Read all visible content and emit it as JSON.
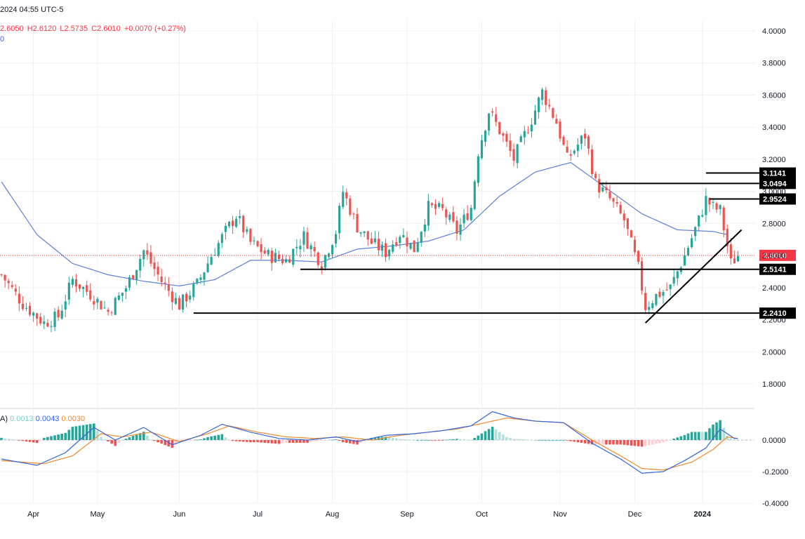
{
  "header": {
    "datetime": "2024 04:55 UTC-5",
    "ohlc": {
      "o": "2.6050",
      "h": "H2.6120",
      "l": "L2.5735",
      "c": "C2.6010",
      "chg": "+0.0070 (+0.27%)"
    },
    "ma_value": "0",
    "macd_prefix": "A)",
    "macd_hist": "0.0013",
    "macd_line": "0.0043",
    "macd_signal": "0.0030"
  },
  "colors": {
    "up": "#26a69a",
    "down": "#ef5350",
    "ma": "#5b7fde",
    "macd": "#3366dd",
    "signal": "#f0892e",
    "hist_up_strong": "#26a69a",
    "hist_up_weak": "#b2dfdb",
    "hist_dn_strong": "#ef5350",
    "hist_dn_weak": "#ffcdd2",
    "grid": "#eef0f3",
    "last_price": "#f23645"
  },
  "chart_data": [
    {
      "type": "candlestick",
      "y_axis_ticks": [
        "4.0000",
        "3.8000",
        "3.6000",
        "3.4000",
        "3.2000",
        "3.0000",
        "2.8000",
        "2.6000",
        "2.4000",
        "2.2000",
        "2.0000",
        "1.8000"
      ],
      "ylim": [
        1.7,
        4.05
      ],
      "x_labels": [
        "Apr",
        "May",
        "Jun",
        "Jul",
        "Aug",
        "Sep",
        "Oct",
        "Nov",
        "Dec",
        "2024"
      ],
      "last_price": "2.6010",
      "horizontal_levels": [
        {
          "label": "3.1141",
          "value": 3.1141,
          "from": 198
        },
        {
          "label": "3.0494",
          "value": 3.0494,
          "from": 168
        },
        {
          "label": "2.9524",
          "value": 2.9524,
          "from": 199
        },
        {
          "label": "2.5141",
          "value": 2.5141,
          "from": 84
        },
        {
          "label": "2.2410",
          "value": 2.241,
          "from": 54
        }
      ],
      "trendline": {
        "from": [
          181,
          2.18
        ],
        "to": [
          208,
          2.76
        ]
      },
      "ma_anchors": [
        [
          0,
          3.06
        ],
        [
          10,
          2.73
        ],
        [
          20,
          2.55
        ],
        [
          30,
          2.48
        ],
        [
          40,
          2.44
        ],
        [
          50,
          2.41
        ],
        [
          60,
          2.45
        ],
        [
          70,
          2.57
        ],
        [
          80,
          2.57
        ],
        [
          90,
          2.56
        ],
        [
          100,
          2.64
        ],
        [
          110,
          2.66
        ],
        [
          120,
          2.69
        ],
        [
          130,
          2.76
        ],
        [
          140,
          2.97
        ],
        [
          150,
          3.12
        ],
        [
          160,
          3.18
        ],
        [
          170,
          3.02
        ],
        [
          180,
          2.86
        ],
        [
          190,
          2.76
        ],
        [
          200,
          2.75
        ],
        [
          204,
          2.73
        ]
      ],
      "close_anchors": [
        [
          0,
          2.48
        ],
        [
          6,
          2.3
        ],
        [
          12,
          2.18
        ],
        [
          16,
          2.22
        ],
        [
          20,
          2.45
        ],
        [
          25,
          2.36
        ],
        [
          30,
          2.25
        ],
        [
          35,
          2.4
        ],
        [
          40,
          2.63
        ],
        [
          45,
          2.44
        ],
        [
          50,
          2.29
        ],
        [
          55,
          2.42
        ],
        [
          59,
          2.6
        ],
        [
          63,
          2.75
        ],
        [
          66,
          2.85
        ],
        [
          70,
          2.68
        ],
        [
          75,
          2.6
        ],
        [
          80,
          2.57
        ],
        [
          85,
          2.72
        ],
        [
          90,
          2.55
        ],
        [
          94,
          2.75
        ],
        [
          96,
          3.0
        ],
        [
          100,
          2.78
        ],
        [
          104,
          2.68
        ],
        [
          108,
          2.62
        ],
        [
          112,
          2.74
        ],
        [
          116,
          2.64
        ],
        [
          120,
          2.9
        ],
        [
          124,
          2.88
        ],
        [
          128,
          2.75
        ],
        [
          132,
          2.9
        ],
        [
          134,
          3.25
        ],
        [
          137,
          3.5
        ],
        [
          140,
          3.38
        ],
        [
          144,
          3.2
        ],
        [
          149,
          3.45
        ],
        [
          152,
          3.62
        ],
        [
          156,
          3.43
        ],
        [
          159,
          3.2
        ],
        [
          164,
          3.35
        ],
        [
          167,
          3.05
        ],
        [
          171,
          2.95
        ],
        [
          175,
          2.82
        ],
        [
          179,
          2.52
        ],
        [
          181,
          2.28
        ],
        [
          184,
          2.35
        ],
        [
          188,
          2.4
        ],
        [
          192,
          2.6
        ],
        [
          196,
          2.82
        ],
        [
          198,
          2.95
        ],
        [
          200,
          2.9
        ],
        [
          202,
          2.88
        ],
        [
          205,
          2.55
        ],
        [
          207,
          2.6
        ]
      ],
      "series": [
        {
          "name": "MACD Line",
          "anchors": [
            [
              0,
              -0.12
            ],
            [
              10,
              -0.16
            ],
            [
              18,
              -0.08
            ],
            [
              26,
              0.08
            ],
            [
              32,
              0.0
            ],
            [
              40,
              0.08
            ],
            [
              48,
              -0.03
            ],
            [
              56,
              0.03
            ],
            [
              62,
              0.1
            ],
            [
              70,
              0.05
            ],
            [
              78,
              0.01
            ],
            [
              86,
              0.0
            ],
            [
              94,
              0.02
            ],
            [
              100,
              -0.01
            ],
            [
              108,
              0.03
            ],
            [
              116,
              0.04
            ],
            [
              124,
              0.06
            ],
            [
              132,
              0.09
            ],
            [
              138,
              0.18
            ],
            [
              144,
              0.14
            ],
            [
              150,
              0.12
            ],
            [
              158,
              0.11
            ],
            [
              166,
              -0.02
            ],
            [
              174,
              -0.12
            ],
            [
              180,
              -0.21
            ],
            [
              186,
              -0.2
            ],
            [
              192,
              -0.13
            ],
            [
              198,
              -0.05
            ],
            [
              202,
              0.07
            ],
            [
              206,
              0.01
            ]
          ]
        },
        {
          "name": "Signal Line",
          "anchors": [
            [
              0,
              -0.13
            ],
            [
              12,
              -0.15
            ],
            [
              20,
              -0.1
            ],
            [
              28,
              0.04
            ],
            [
              34,
              0.02
            ],
            [
              42,
              0.05
            ],
            [
              50,
              -0.01
            ],
            [
              58,
              0.04
            ],
            [
              64,
              0.09
            ],
            [
              72,
              0.05
            ],
            [
              80,
              0.02
            ],
            [
              88,
              0.01
            ],
            [
              96,
              0.02
            ],
            [
              104,
              0.0
            ],
            [
              112,
              0.03
            ],
            [
              120,
              0.05
            ],
            [
              128,
              0.07
            ],
            [
              136,
              0.11
            ],
            [
              142,
              0.14
            ],
            [
              150,
              0.12
            ],
            [
              158,
              0.11
            ],
            [
              166,
              0.0
            ],
            [
              174,
              -0.1
            ],
            [
              180,
              -0.18
            ],
            [
              186,
              -0.19
            ],
            [
              194,
              -0.14
            ],
            [
              200,
              -0.06
            ],
            [
              204,
              0.02
            ],
            [
              207,
              0.01
            ]
          ]
        }
      ],
      "macd_y_ticks": [
        "0.0000",
        "-0.2000",
        "-0.4000"
      ],
      "macd_ylim": [
        -0.4,
        0.22
      ]
    }
  ]
}
